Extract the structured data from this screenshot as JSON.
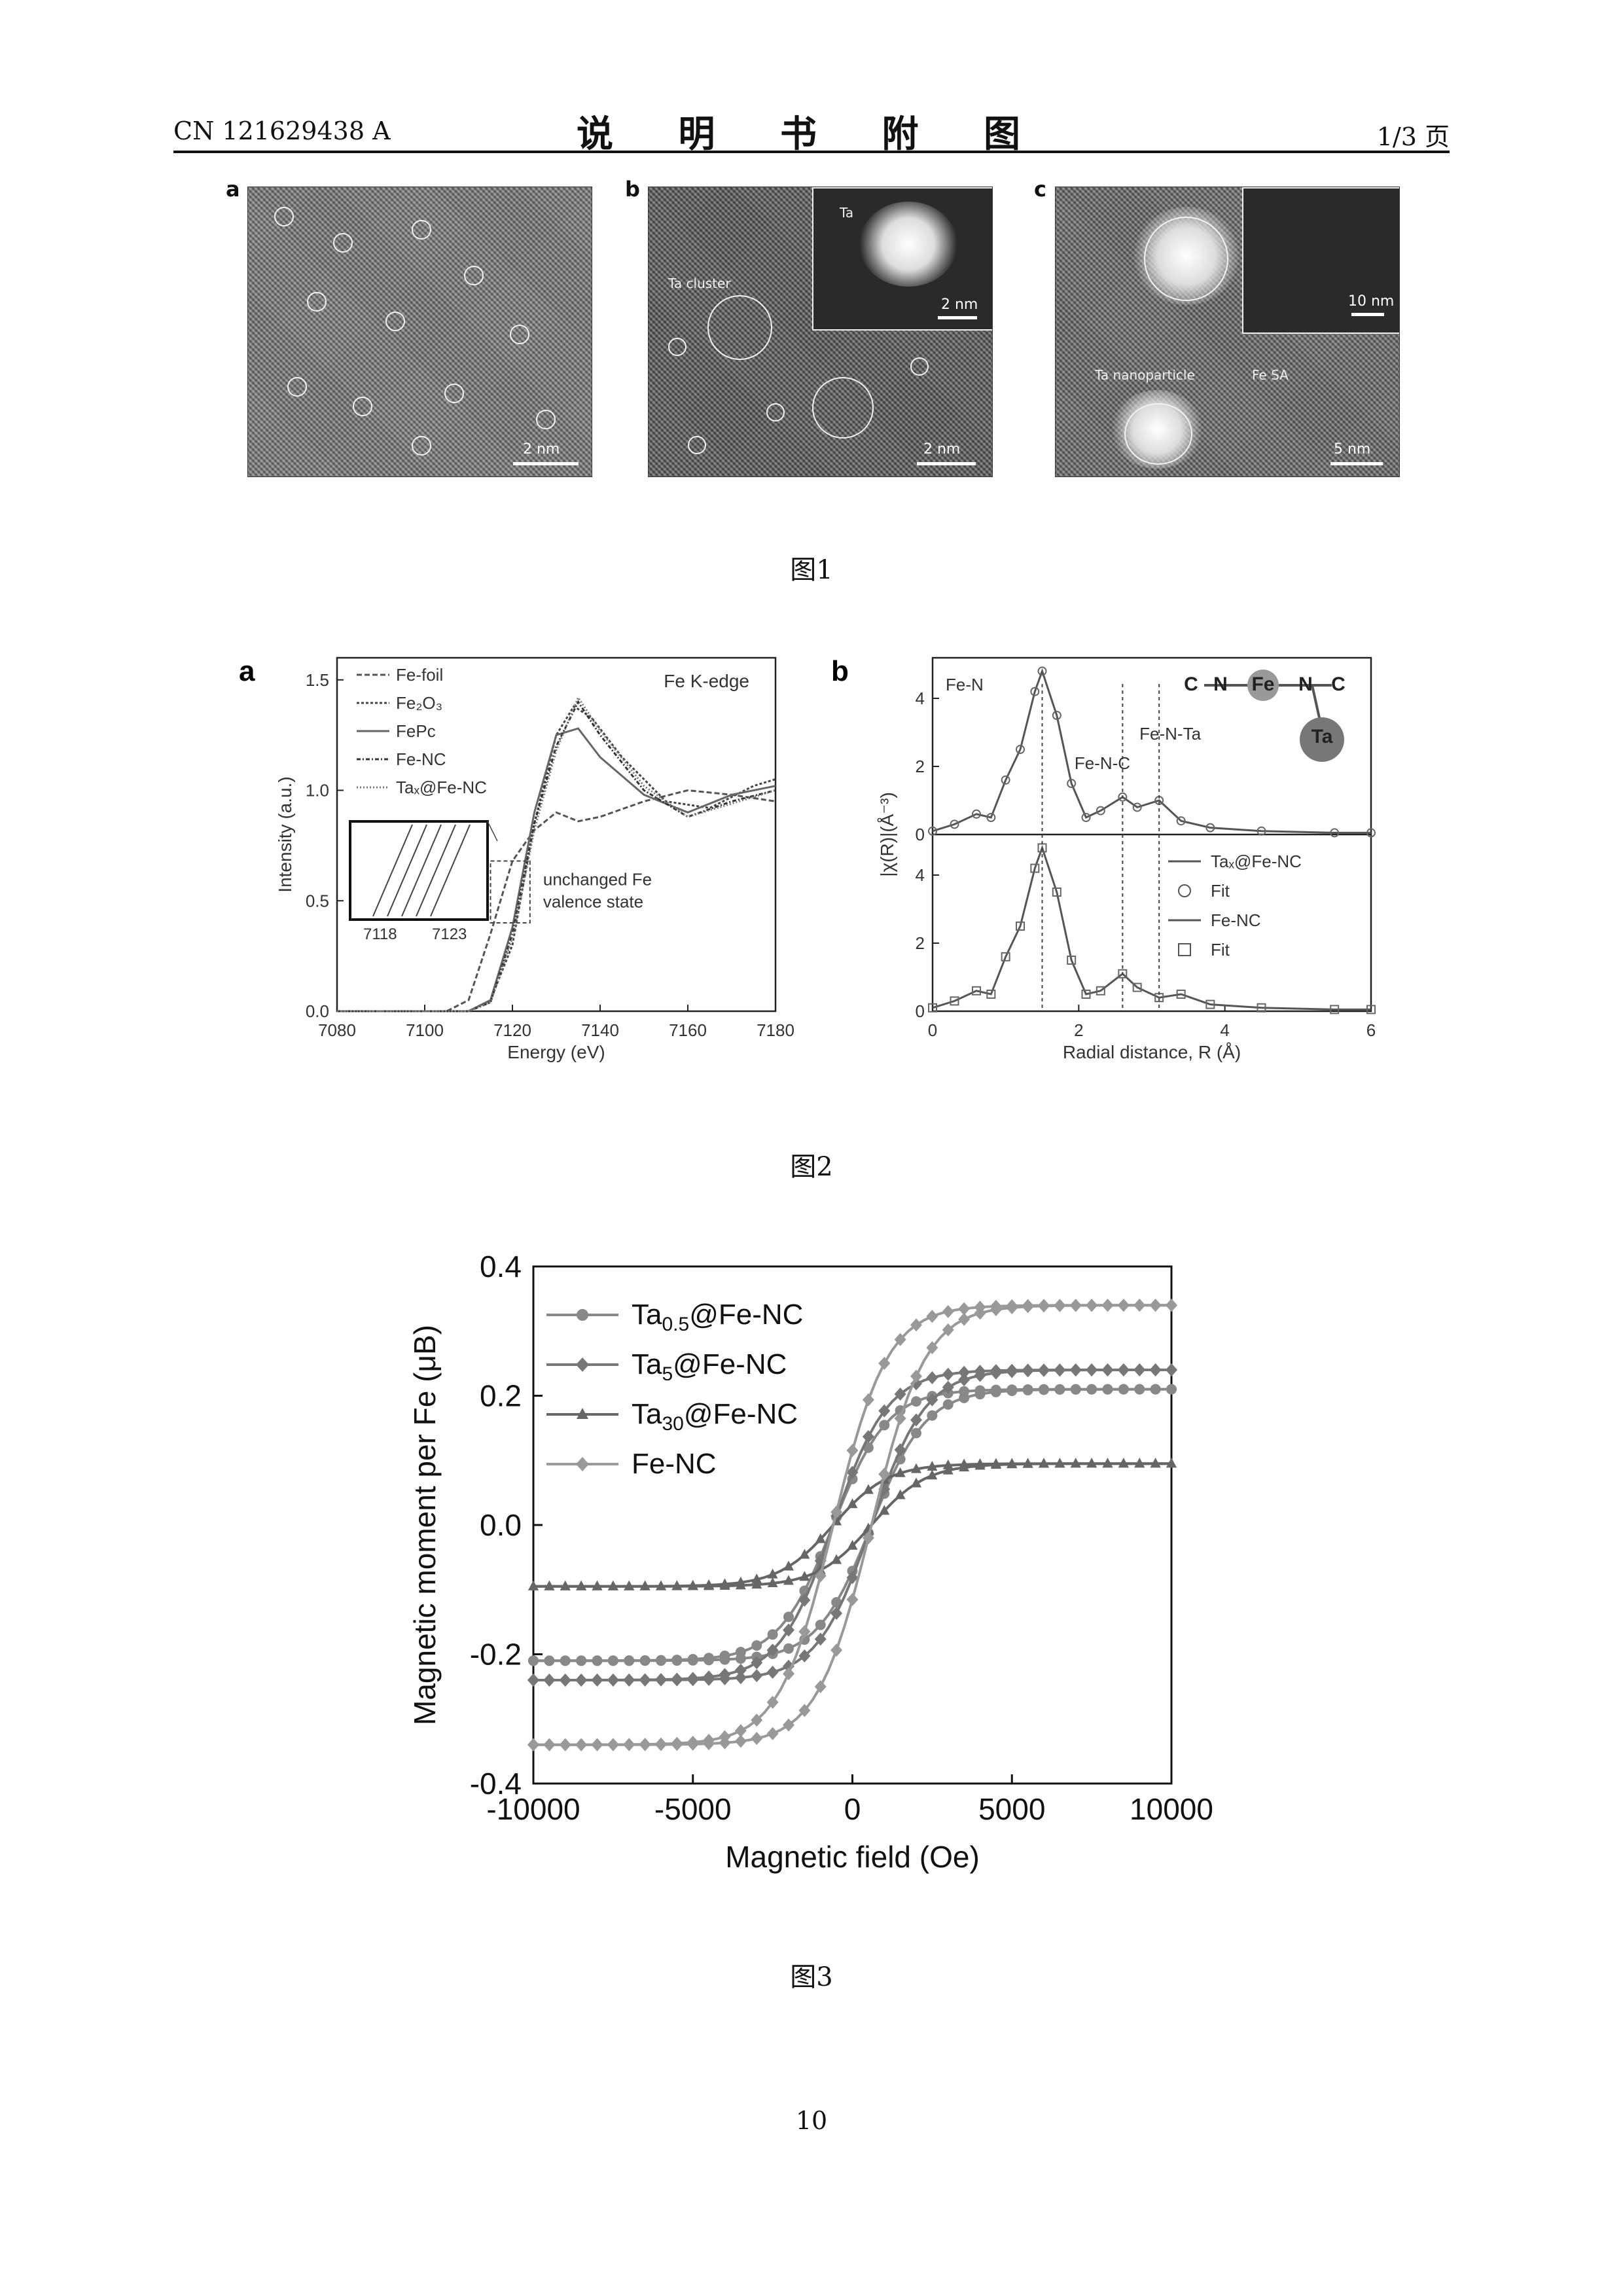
{
  "header": {
    "doc_number": "CN 121629438 A",
    "title": "说 明 书 附 图",
    "page": "1/3 页"
  },
  "figure1": {
    "caption": "图1",
    "panels": [
      {
        "label": "a",
        "scale": "2 nm"
      },
      {
        "label": "b",
        "scale": "2 nm",
        "inset_label": "Ta",
        "inset_scale": "2 nm",
        "annotation": "Ta cluster"
      },
      {
        "label": "c",
        "scale": "5 nm",
        "inset_scale": "10 nm",
        "annotation": "Ta nanoparticle",
        "annotation2": "Fe SA"
      }
    ]
  },
  "figure2": {
    "caption": "图2",
    "chart_data": [
      {
        "panel": "a",
        "type": "line",
        "annotation": "Fe K-edge",
        "xlabel": "Energy (eV)",
        "ylabel": "Intensity (a.u.)",
        "xlim": [
          7080,
          7180
        ],
        "ylim": [
          0.0,
          1.6
        ],
        "xticks": [
          "7080",
          "7100",
          "7120",
          "7140",
          "7160",
          "7180"
        ],
        "yticks": [
          "0.0",
          "0.5",
          "1.0",
          "1.5"
        ],
        "legend": [
          "Fe-foil",
          "Fe₂O₃",
          "FePc",
          "Fe-NC",
          "Taₓ@Fe-NC"
        ],
        "inset_ticks": [
          "7118",
          "7123"
        ],
        "box_note": "unchanged Fe valence state",
        "series": [
          {
            "name": "Fe-foil",
            "x": [
              7080,
              7105,
              7110,
              7115,
              7120,
              7125,
              7130,
              7135,
              7140,
              7150,
              7160,
              7170,
              7180
            ],
            "y": [
              0,
              0,
              0.05,
              0.35,
              0.68,
              0.82,
              0.9,
              0.86,
              0.88,
              0.95,
              1.0,
              0.98,
              0.95
            ]
          },
          {
            "name": "Fe₂O₃",
            "x": [
              7080,
              7110,
              7115,
              7120,
              7125,
              7130,
              7134,
              7138,
              7145,
              7155,
              7165,
              7175,
              7180
            ],
            "y": [
              0,
              0,
              0.05,
              0.3,
              0.85,
              1.25,
              1.38,
              1.33,
              1.15,
              0.95,
              0.92,
              1.02,
              1.05
            ]
          },
          {
            "name": "FePc",
            "x": [
              7080,
              7110,
              7115,
              7120,
              7125,
              7130,
              7135,
              7140,
              7150,
              7160,
              7170,
              7180
            ],
            "y": [
              0,
              0,
              0.05,
              0.38,
              0.9,
              1.25,
              1.28,
              1.15,
              0.98,
              0.9,
              0.98,
              1.02
            ]
          },
          {
            "name": "Fe-NC",
            "x": [
              7080,
              7110,
              7115,
              7120,
              7125,
              7130,
              7135,
              7140,
              7150,
              7160,
              7170,
              7180
            ],
            "y": [
              0,
              0,
              0.04,
              0.35,
              0.85,
              1.2,
              1.4,
              1.25,
              1.0,
              0.88,
              0.95,
              1.0
            ]
          },
          {
            "name": "Taₓ@Fe-NC",
            "x": [
              7080,
              7110,
              7115,
              7120,
              7125,
              7130,
              7135,
              7140,
              7150,
              7160,
              7170,
              7180
            ],
            "y": [
              0,
              0,
              0.04,
              0.33,
              0.82,
              1.18,
              1.42,
              1.27,
              1.02,
              0.88,
              0.94,
              1.0
            ]
          }
        ]
      },
      {
        "panel": "b",
        "type": "line",
        "xlabel": "Radial distance, R (Å)",
        "ylabel": "|χ(R)|(Å⁻³)",
        "xlim": [
          0,
          6
        ],
        "ylim": [
          0,
          5
        ],
        "xticks": [
          "0",
          "2",
          "4",
          "6"
        ],
        "yticks": [
          "0",
          "2",
          "4"
        ],
        "annotations": [
          "Fe-N",
          "Fe-N-C",
          "Fe-N-Ta"
        ],
        "structure_labels": [
          "C",
          "N",
          "Fe",
          "N",
          "C",
          "Ta"
        ],
        "legend": [
          "Taₓ@Fe-NC",
          "Fit",
          "Fe-NC",
          "Fit"
        ],
        "series": [
          {
            "name": "Taₓ@Fe-NC",
            "x": [
              0,
              0.3,
              0.6,
              0.8,
              1.0,
              1.2,
              1.4,
              1.5,
              1.7,
              1.9,
              2.1,
              2.3,
              2.6,
              2.8,
              3.1,
              3.4,
              3.8,
              4.5,
              5.5,
              6
            ],
            "y": [
              0.1,
              0.3,
              0.6,
              0.5,
              1.6,
              2.5,
              4.2,
              4.8,
              3.5,
              1.5,
              0.5,
              0.7,
              1.1,
              0.8,
              1.0,
              0.4,
              0.2,
              0.1,
              0.05,
              0.05
            ]
          },
          {
            "name": "Fe-NC",
            "x": [
              0,
              0.3,
              0.6,
              0.8,
              1.0,
              1.2,
              1.4,
              1.5,
              1.7,
              1.9,
              2.1,
              2.3,
              2.6,
              2.8,
              3.1,
              3.4,
              3.8,
              4.5,
              5.5,
              6
            ],
            "y": [
              0.1,
              0.3,
              0.6,
              0.5,
              1.6,
              2.5,
              4.2,
              4.8,
              3.5,
              1.5,
              0.5,
              0.6,
              1.1,
              0.7,
              0.4,
              0.5,
              0.2,
              0.1,
              0.05,
              0.05
            ]
          }
        ]
      }
    ]
  },
  "figure3": {
    "caption": "图3",
    "chart_data": {
      "type": "line",
      "xlabel": "Magnetic field (Oe)",
      "ylabel": "Magnetic moment per Fe (μB)",
      "xlim": [
        -10000,
        10000
      ],
      "ylim": [
        -0.4,
        0.4
      ],
      "xticks": [
        "-10000",
        "-5000",
        "0",
        "5000",
        "10000"
      ],
      "yticks": [
        "-0.4",
        "-0.2",
        "0.0",
        "0.2",
        "0.4"
      ],
      "legend_placement": "top-left",
      "series": [
        {
          "name": "Ta0.5@Fe-NC",
          "ms": 0.21,
          "marker": "circle"
        },
        {
          "name": "Ta5@Fe-NC",
          "ms": 0.24,
          "marker": "diamond"
        },
        {
          "name": "Ta30@Fe-NC",
          "ms": 0.095,
          "marker": "triangle"
        },
        {
          "name": "Fe-NC",
          "ms": 0.34,
          "marker": "diamond"
        }
      ]
    }
  },
  "page_number": "10"
}
